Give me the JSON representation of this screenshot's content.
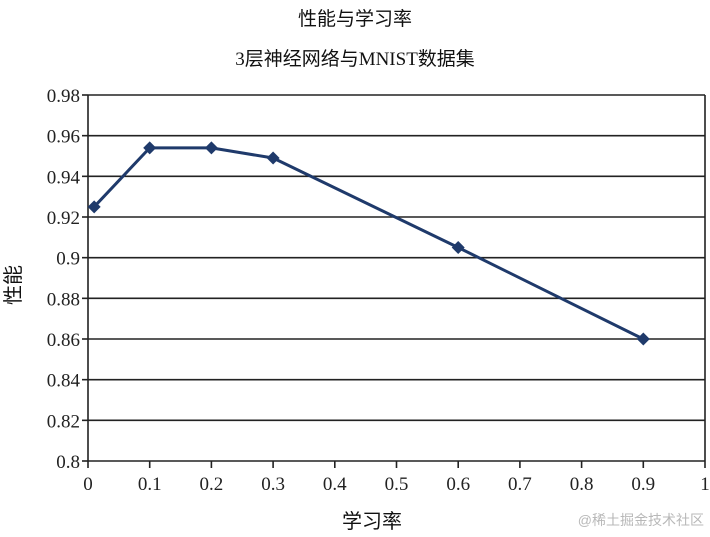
{
  "chart_data": {
    "type": "line",
    "title": "性能与学习率",
    "subtitle": "3层神经网络与MNIST数据集",
    "xlabel": "学习率",
    "ylabel": "性能",
    "xlim": [
      0,
      1
    ],
    "ylim": [
      0.8,
      0.98
    ],
    "x_ticks": [
      "0",
      "0.1",
      "0.2",
      "0.3",
      "0.4",
      "0.5",
      "0.6",
      "0.7",
      "0.8",
      "0.9",
      "1"
    ],
    "y_ticks": [
      "0.8",
      "0.82",
      "0.84",
      "0.86",
      "0.88",
      "0.9",
      "0.92",
      "0.94",
      "0.96",
      "0.98"
    ],
    "grid": "horizontal",
    "legend": null,
    "series": [
      {
        "name": "性能",
        "color": "#1f3a6b",
        "marker": "diamond",
        "x": [
          0.01,
          0.1,
          0.2,
          0.3,
          0.6,
          0.9
        ],
        "values": [
          0.925,
          0.954,
          0.954,
          0.949,
          0.905,
          0.86
        ]
      }
    ]
  },
  "watermark": "@稀土掘金技术社区"
}
